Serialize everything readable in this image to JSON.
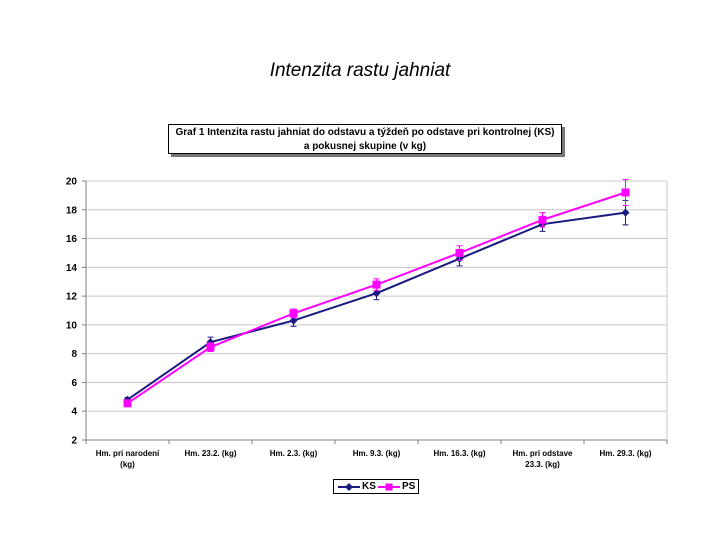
{
  "page": {
    "title": "Intenzita rastu jahniat"
  },
  "chart_data": {
    "type": "line",
    "title_lines": [
      "Graf 1  Intenzita rastu jahniat do odstavu a týždeň po odstave pri kontrolnej (KS)",
      "a pokusnej skupine (v kg)"
    ],
    "categories": [
      [
        "Hm. pri narodení",
        "(kg)"
      ],
      [
        "Hm. 23.2. (kg)"
      ],
      [
        "Hm. 2.3. (kg)"
      ],
      [
        "Hm. 9.3. (kg)"
      ],
      [
        "Hm. 16.3. (kg)"
      ],
      [
        "Hm. pri odstave",
        "23.3. (kg)"
      ],
      [
        "Hm. 29.3. (kg)"
      ]
    ],
    "ylim": [
      2,
      20
    ],
    "yticks": [
      2,
      4,
      6,
      8,
      10,
      12,
      14,
      16,
      18,
      20
    ],
    "grid": true,
    "legend_position": "bottom",
    "series": [
      {
        "name": "KS",
        "color": "#1a1a80",
        "marker": "diamond",
        "values": [
          4.8,
          8.8,
          10.3,
          12.2,
          14.6,
          17.0,
          17.8
        ],
        "error": [
          0.15,
          0.35,
          0.4,
          0.45,
          0.5,
          0.5,
          0.85
        ]
      },
      {
        "name": "PS",
        "color": "#ff00ff",
        "marker": "square",
        "values": [
          4.55,
          8.45,
          10.8,
          12.8,
          15.0,
          17.3,
          19.2
        ],
        "error": [
          0.1,
          0.3,
          0.3,
          0.4,
          0.5,
          0.5,
          0.9
        ]
      }
    ]
  }
}
